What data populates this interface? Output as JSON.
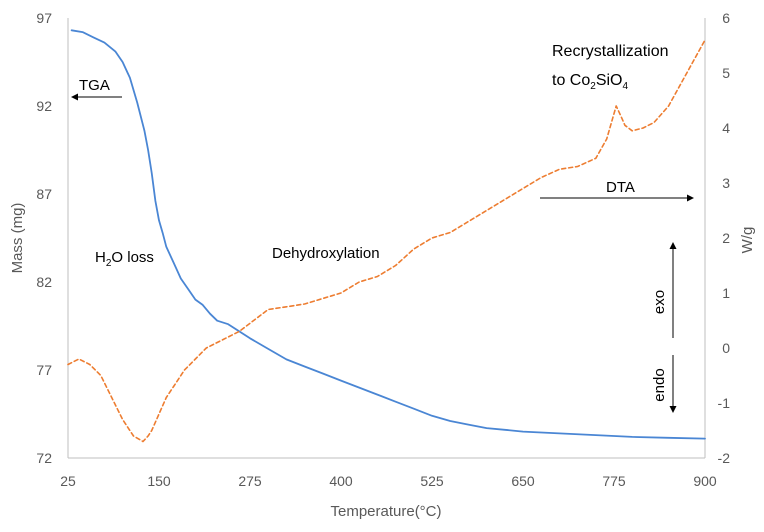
{
  "chart_data": {
    "type": "line",
    "title": "",
    "xlabel": "Temperature(°C)",
    "ylabel": "Mass (mg)",
    "y2label": "W/g",
    "xlim": [
      25,
      900
    ],
    "ylim": [
      72,
      97
    ],
    "y2lim": [
      -2,
      6
    ],
    "xticks": [
      "25",
      "150",
      "275",
      "400",
      "525",
      "650",
      "775",
      "900"
    ],
    "yticks": [
      "72",
      "77",
      "82",
      "87",
      "92",
      "97"
    ],
    "y2ticks": [
      "-2",
      "-1",
      "0",
      "1",
      "2",
      "3",
      "4",
      "5",
      "6"
    ],
    "grid": false,
    "legend": "none",
    "series": [
      {
        "name": "TGA",
        "axis": "left",
        "color": "#4a86d4",
        "style": "solid",
        "x": [
          30,
          45,
          60,
          75,
          90,
          100,
          110,
          120,
          130,
          135,
          140,
          145,
          150,
          155,
          160,
          170,
          180,
          190,
          200,
          210,
          220,
          230,
          245,
          260,
          275,
          300,
          325,
          350,
          375,
          400,
          425,
          450,
          475,
          500,
          525,
          550,
          575,
          600,
          625,
          650,
          700,
          750,
          800,
          850,
          900
        ],
        "values": [
          96.3,
          96.2,
          95.9,
          95.6,
          95.1,
          94.5,
          93.6,
          92.2,
          90.6,
          89.5,
          88.2,
          86.6,
          85.5,
          84.8,
          84.0,
          83.1,
          82.2,
          81.6,
          81.0,
          80.7,
          80.2,
          79.8,
          79.6,
          79.2,
          78.8,
          78.2,
          77.6,
          77.2,
          76.8,
          76.4,
          76.0,
          75.6,
          75.2,
          74.8,
          74.4,
          74.1,
          73.9,
          73.7,
          73.6,
          73.5,
          73.4,
          73.3,
          73.2,
          73.15,
          73.1
        ]
      },
      {
        "name": "DTA",
        "axis": "right",
        "color": "#ed7d31",
        "style": "dashed",
        "x": [
          25,
          40,
          55,
          70,
          85,
          100,
          115,
          128,
          135,
          140,
          150,
          160,
          170,
          185,
          200,
          215,
          230,
          245,
          260,
          275,
          300,
          325,
          350,
          375,
          400,
          425,
          450,
          475,
          500,
          525,
          550,
          575,
          600,
          625,
          650,
          675,
          700,
          725,
          750,
          765,
          778,
          785,
          790,
          800,
          815,
          830,
          850,
          875,
          900
        ],
        "values": [
          -0.3,
          -0.2,
          -0.3,
          -0.5,
          -0.9,
          -1.3,
          -1.6,
          -1.7,
          -1.6,
          -1.5,
          -1.2,
          -0.9,
          -0.7,
          -0.4,
          -0.2,
          0.0,
          0.1,
          0.2,
          0.3,
          0.45,
          0.7,
          0.75,
          0.8,
          0.9,
          1.0,
          1.2,
          1.3,
          1.5,
          1.8,
          2.0,
          2.1,
          2.3,
          2.5,
          2.7,
          2.9,
          3.1,
          3.25,
          3.3,
          3.45,
          3.8,
          4.4,
          4.2,
          4.05,
          3.95,
          4.0,
          4.1,
          4.4,
          5.0,
          5.6
        ]
      }
    ],
    "annotations": {
      "tga": "TGA",
      "dta": "DTA",
      "h2o_loss_pre": "H",
      "h2o_loss_sub": "2",
      "h2o_loss_post": "O loss",
      "dehydroxylation": "Dehydroxylation",
      "recryst_line1": "Recrystallization",
      "recryst_to": "to Co",
      "recryst_sub1": "2",
      "recryst_mid": "SiO",
      "recryst_sub2": "4",
      "exo": "exo",
      "endo": "endo"
    }
  }
}
